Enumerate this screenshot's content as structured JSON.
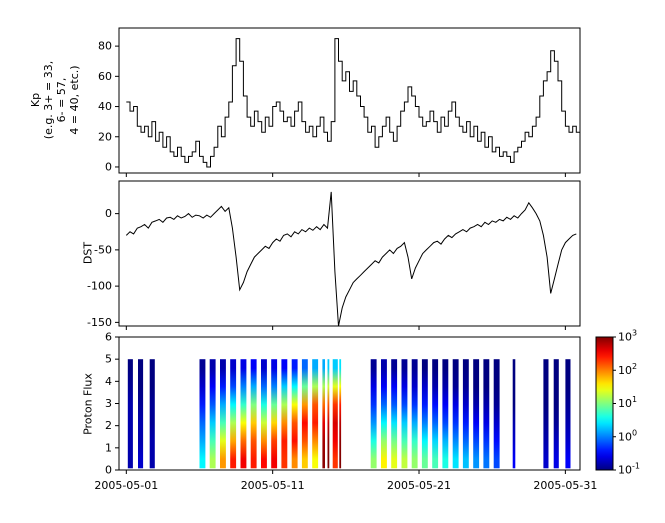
{
  "figure": {
    "background": "#ffffff",
    "axis_color": "#000000",
    "xlim": [
      -0.5,
      31
    ],
    "xtick_positions": [
      0,
      10,
      20,
      30
    ],
    "xtick_labels": [
      "2005-05-01",
      "2005-05-11",
      "2005-05-21",
      "2005-05-31"
    ]
  },
  "chart_data": [
    {
      "type": "line",
      "name": "kp-index",
      "step": true,
      "ylabel": "Kp (e.g. 3+ = 33, 6- = 57, 4 = 40, etc.)",
      "ylabel_lines": [
        "Kp",
        "(e.g. 3+ = 33,",
        "6- = 57,",
        "4 = 40, etc.)"
      ],
      "ylim": [
        -4,
        92
      ],
      "yticks": [
        0,
        20,
        40,
        60,
        80
      ],
      "line_color": "#000000",
      "x": {
        "start": 0,
        "step_days": 0.25
      },
      "series": [
        {
          "name": "Kp",
          "values": [
            43,
            37,
            40,
            27,
            23,
            27,
            20,
            30,
            17,
            23,
            13,
            20,
            10,
            7,
            13,
            7,
            3,
            7,
            10,
            17,
            7,
            3,
            0,
            7,
            13,
            27,
            20,
            33,
            43,
            67,
            85,
            70,
            47,
            33,
            27,
            37,
            30,
            23,
            33,
            27,
            40,
            43,
            37,
            30,
            33,
            27,
            37,
            43,
            30,
            23,
            27,
            20,
            27,
            33,
            23,
            17,
            30,
            85,
            70,
            57,
            63,
            50,
            57,
            47,
            40,
            33,
            23,
            27,
            13,
            20,
            27,
            33,
            23,
            17,
            27,
            37,
            43,
            53,
            47,
            40,
            33,
            27,
            30,
            37,
            30,
            23,
            33,
            27,
            37,
            43,
            33,
            27,
            23,
            30,
            20,
            27,
            17,
            23,
            13,
            20,
            10,
            13,
            7,
            10,
            7,
            3,
            10,
            13,
            17,
            23,
            20,
            27,
            33,
            47,
            57,
            63,
            77,
            70,
            57,
            37,
            27,
            23,
            27,
            23
          ]
        }
      ]
    },
    {
      "type": "line",
      "name": "dst-index",
      "step": false,
      "ylabel": "DST",
      "ylim": [
        -155,
        45
      ],
      "yticks": [
        0,
        -50,
        -100,
        -150
      ],
      "line_color": "#000000",
      "x": {
        "start": 0,
        "step_days": 0.25
      },
      "series": [
        {
          "name": "DST",
          "values": [
            -30,
            -25,
            -28,
            -20,
            -18,
            -15,
            -20,
            -12,
            -10,
            -8,
            -12,
            -6,
            -5,
            -8,
            -3,
            -6,
            -4,
            0,
            -5,
            -2,
            -3,
            -6,
            -2,
            -5,
            0,
            5,
            10,
            3,
            8,
            -20,
            -60,
            -105,
            -95,
            -80,
            -70,
            -60,
            -55,
            -50,
            -45,
            -48,
            -40,
            -35,
            -38,
            -30,
            -28,
            -32,
            -25,
            -28,
            -22,
            -25,
            -20,
            -23,
            -18,
            -22,
            -15,
            -20,
            30,
            -80,
            -155,
            -130,
            -115,
            -105,
            -95,
            -90,
            -85,
            -80,
            -75,
            -70,
            -65,
            -68,
            -60,
            -55,
            -50,
            -55,
            -48,
            -45,
            -40,
            -60,
            -90,
            -75,
            -65,
            -55,
            -50,
            -45,
            -40,
            -38,
            -42,
            -35,
            -30,
            -33,
            -28,
            -25,
            -22,
            -25,
            -20,
            -18,
            -15,
            -18,
            -12,
            -15,
            -10,
            -12,
            -8,
            -10,
            -5,
            -8,
            -3,
            -6,
            0,
            5,
            15,
            8,
            0,
            -10,
            -30,
            -60,
            -110,
            -90,
            -70,
            -50,
            -40,
            -35,
            -30,
            -28
          ]
        }
      ]
    },
    {
      "type": "heatmap",
      "name": "proton-flux-spectrogram",
      "ylabel": "Proton Flux",
      "ylim": [
        0,
        6
      ],
      "yticks": [
        0,
        1,
        2,
        3,
        4,
        5,
        6
      ],
      "bar_y": [
        0.08,
        5.0
      ],
      "colormap": "jet",
      "colorbar": {
        "scale": "log10",
        "range_exponents": [
          -1,
          3
        ],
        "tick_exponents": [
          3,
          2,
          1,
          0,
          -1
        ],
        "tick_base": "10"
      },
      "bars": [
        {
          "day": 0.1,
          "w": 0.35,
          "v": [
            0.15,
            0.15,
            0.15,
            0.15,
            0.12,
            0.1
          ]
        },
        {
          "day": 0.8,
          "w": 0.35,
          "v": [
            0.2,
            0.15,
            0.15,
            0.12,
            0.1,
            0.1
          ]
        },
        {
          "day": 1.6,
          "w": 0.35,
          "v": [
            0.15,
            0.15,
            0.12,
            0.12,
            0.1,
            0.1
          ]
        },
        {
          "day": 5.0,
          "w": 0.4,
          "v": [
            3,
            1.5,
            0.8,
            0.4,
            0.2,
            0.12
          ]
        },
        {
          "day": 5.7,
          "w": 0.4,
          "v": [
            15,
            6,
            2,
            0.7,
            0.3,
            0.15
          ]
        },
        {
          "day": 6.4,
          "w": 0.4,
          "v": [
            80,
            25,
            6,
            1.5,
            0.4,
            0.15
          ]
        },
        {
          "day": 7.1,
          "w": 0.4,
          "v": [
            250,
            70,
            15,
            3,
            0.6,
            0.2
          ]
        },
        {
          "day": 7.8,
          "w": 0.4,
          "v": [
            350,
            120,
            30,
            5,
            1,
            0.25
          ]
        },
        {
          "day": 8.5,
          "w": 0.4,
          "v": [
            250,
            150,
            50,
            10,
            1.5,
            0.3
          ]
        },
        {
          "day": 9.2,
          "w": 0.4,
          "v": [
            300,
            90,
            20,
            4,
            0.8,
            0.2
          ]
        },
        {
          "day": 9.9,
          "w": 0.4,
          "v": [
            350,
            180,
            45,
            8,
            1,
            0.25
          ]
        },
        {
          "day": 10.6,
          "w": 0.4,
          "v": [
            200,
            250,
            90,
            15,
            2,
            0.3
          ]
        },
        {
          "day": 11.3,
          "w": 0.4,
          "v": [
            90,
            280,
            150,
            30,
            3,
            0.4
          ]
        },
        {
          "day": 12.0,
          "w": 0.4,
          "v": [
            50,
            150,
            300,
            80,
            8,
            0.8
          ]
        },
        {
          "day": 12.7,
          "w": 0.4,
          "v": [
            30,
            90,
            250,
            150,
            15,
            1.5
          ]
        },
        {
          "day": 13.4,
          "w": 0.18,
          "v": [
            900,
            700,
            400,
            120,
            15,
            1.5
          ]
        },
        {
          "day": 13.75,
          "w": 0.12,
          "v": [
            1000,
            850,
            500,
            150,
            20,
            2
          ]
        },
        {
          "day": 14.1,
          "w": 0.35,
          "v": [
            200,
            350,
            450,
            200,
            25,
            2
          ]
        },
        {
          "day": 14.55,
          "w": 0.12,
          "v": [
            1000,
            900,
            600,
            250,
            30,
            2.5
          ]
        },
        {
          "day": 16.7,
          "w": 0.4,
          "v": [
            12,
            4,
            1.2,
            0.5,
            0.25,
            0.12
          ]
        },
        {
          "day": 17.4,
          "w": 0.4,
          "v": [
            35,
            12,
            3,
            0.8,
            0.3,
            0.15
          ]
        },
        {
          "day": 18.1,
          "w": 0.4,
          "v": [
            25,
            9,
            2.5,
            0.7,
            0.3,
            0.12
          ]
        },
        {
          "day": 18.8,
          "w": 0.4,
          "v": [
            18,
            6,
            2,
            0.6,
            0.25,
            0.12
          ]
        },
        {
          "day": 19.5,
          "w": 0.4,
          "v": [
            12,
            5,
            1.5,
            0.5,
            0.2,
            0.12
          ]
        },
        {
          "day": 20.2,
          "w": 0.4,
          "v": [
            8,
            3,
            1,
            0.4,
            0.2,
            0.1
          ]
        },
        {
          "day": 20.9,
          "w": 0.4,
          "v": [
            6,
            2.2,
            0.8,
            0.35,
            0.15,
            0.1
          ]
        },
        {
          "day": 21.6,
          "w": 0.4,
          "v": [
            4,
            1.6,
            0.6,
            0.3,
            0.15,
            0.1
          ]
        },
        {
          "day": 22.3,
          "w": 0.4,
          "v": [
            2.5,
            1.1,
            0.5,
            0.25,
            0.12,
            0.1
          ]
        },
        {
          "day": 23.0,
          "w": 0.4,
          "v": [
            1.8,
            0.8,
            0.4,
            0.2,
            0.12,
            0.1
          ]
        },
        {
          "day": 23.7,
          "w": 0.4,
          "v": [
            1.2,
            0.6,
            0.3,
            0.15,
            0.1,
            0.1
          ]
        },
        {
          "day": 24.4,
          "w": 0.4,
          "v": [
            0.9,
            0.5,
            0.25,
            0.15,
            0.1,
            0.1
          ]
        },
        {
          "day": 25.1,
          "w": 0.4,
          "v": [
            0.6,
            0.35,
            0.2,
            0.12,
            0.1,
            0.1
          ]
        },
        {
          "day": 26.4,
          "w": 0.18,
          "v": [
            0.3,
            0.2,
            0.15,
            0.1,
            0.1,
            0.1
          ]
        },
        {
          "day": 28.5,
          "w": 0.35,
          "v": [
            0.2,
            0.15,
            0.12,
            0.1,
            0.1,
            0.1
          ]
        },
        {
          "day": 29.2,
          "w": 0.35,
          "v": [
            0.25,
            0.18,
            0.12,
            0.1,
            0.1,
            0.1
          ]
        },
        {
          "day": 30.0,
          "w": 0.35,
          "v": [
            0.3,
            0.2,
            0.15,
            0.12,
            0.1,
            0.1
          ]
        }
      ]
    }
  ]
}
